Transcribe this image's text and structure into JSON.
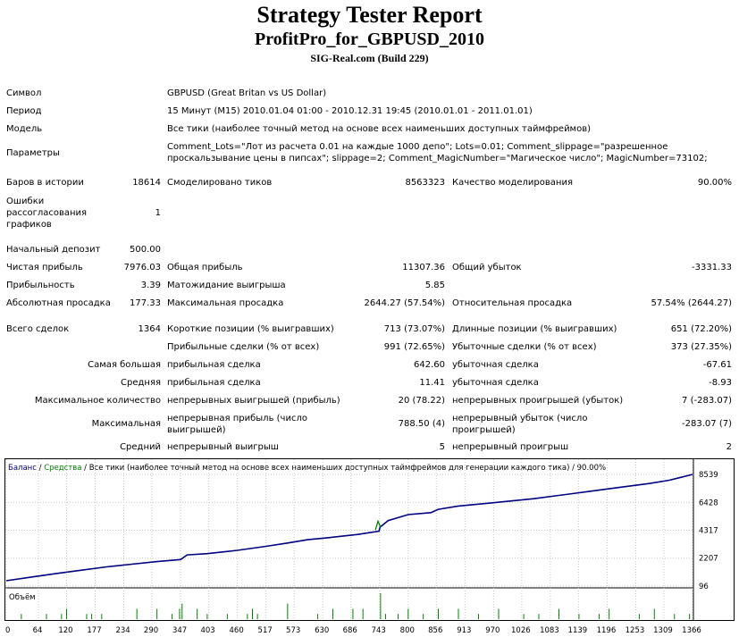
{
  "header": {
    "title": "Strategy Tester Report",
    "subtitle": "ProfitPro_for_GBPUSD_2010",
    "build": "SIG-Real.com (Build 229)"
  },
  "info": {
    "symbol_label": "Символ",
    "symbol_value": "GBPUSD (Great Britan vs US Dollar)",
    "period_label": "Период",
    "period_value": "15 Минут (M15) 2010.01.04 01:00 - 2010.12.31 19:45 (2010.01.01 - 2011.01.01)",
    "model_label": "Модель",
    "model_value": "Все тики (наиболее точный метод на основе всех наименьших доступных таймфреймов)",
    "params_label": "Параметры",
    "params_value": "Comment_Lots=\"Лот из расчета 0.01 на каждые 1000 депо\"; Lots=0.01; Comment_slippage=\"разрешенное проскальзывание цены в пипсах\"; slippage=2; Comment_MagicNumber=\"Магическое число\"; MagicNumber=73102;"
  },
  "stats": {
    "bars_label": "Баров в истории",
    "bars_value": "18614",
    "ticks_label": "Смоделировано тиков",
    "ticks_value": "8563323",
    "quality_label": "Качество моделирования",
    "quality_value": "90.00%",
    "errors_label": "Ошибки рассогласования графиков",
    "errors_value": "1",
    "deposit_label": "Начальный депозит",
    "deposit_value": "500.00",
    "net_label": "Чистая прибыль",
    "net_value": "7976.03",
    "gross_profit_label": "Общая прибыль",
    "gross_profit_value": "11307.36",
    "gross_loss_label": "Общий убыток",
    "gross_loss_value": "-3331.33",
    "pf_label": "Прибыльность",
    "pf_value": "3.39",
    "payoff_label": "Матожидание выигрыша",
    "payoff_value": "5.85",
    "abs_dd_label": "Абсолютная просадка",
    "abs_dd_value": "177.33",
    "max_dd_label": "Максимальная просадка",
    "max_dd_value": "2644.27 (57.54%)",
    "rel_dd_label": "Относительная просадка",
    "rel_dd_value": "57.54% (2644.27)",
    "trades_label": "Всего сделок",
    "trades_value": "1364",
    "short_label": "Короткие позиции (% выигравших)",
    "short_value": "713 (73.07%)",
    "long_label": "Длинные позиции (% выигравших)",
    "long_value": "651 (72.20%)",
    "profit_trades_label": "Прибыльные сделки (% от всех)",
    "profit_trades_value": "991 (72.65%)",
    "loss_trades_label": "Убыточные сделки (% от всех)",
    "loss_trades_value": "373 (27.35%)",
    "largest_label": "Самая большая",
    "largest_profit_label": "прибыльная сделка",
    "largest_profit_value": "642.60",
    "largest_loss_label": "убыточная сделка",
    "largest_loss_value": "-67.61",
    "avg_label": "Средняя",
    "avg_profit_label": "прибыльная сделка",
    "avg_profit_value": "11.41",
    "avg_loss_label": "убыточная сделка",
    "avg_loss_value": "-8.93",
    "maxcount_label": "Максимальное количество",
    "cons_wins_label": "непрерывных выигрышей (прибыль)",
    "cons_wins_value": "20 (78.22)",
    "cons_losses_label": "непрерывных проигрышей (убыток)",
    "cons_losses_value": "7 (-283.07)",
    "maximal_label": "Максимальная",
    "cons_profit_label": "непрерывная прибыль (число выигрышей)",
    "cons_profit_value": "788.50 (4)",
    "cons_loss_label": "непрерывный убыток (число проигрышей)",
    "cons_loss_value": "-283.07 (7)",
    "avgcons_label": "Средний",
    "avg_cons_win_label": "непрерывный выигрыш",
    "avg_cons_win_value": "5",
    "avg_cons_loss_label": "непрерывный проигрыш",
    "avg_cons_loss_value": "2"
  },
  "chart_data": {
    "type": "line",
    "legend_balance": "Баланс",
    "legend_sep1": " / ",
    "legend_equity": "Средства",
    "legend_rest": " / Все тики (наиболее точный метод на основе всех наименьших доступных таймфреймов для генерации каждого тика) / 90.00%",
    "volume_label": "Объём",
    "y_ticks": [
      "8539",
      "6428",
      "4317",
      "2207",
      "96"
    ],
    "y_tick_values": [
      8539,
      6428,
      4317,
      2207,
      96
    ],
    "x_ticks": [
      "0",
      "64",
      "120",
      "177",
      "234",
      "290",
      "347",
      "403",
      "460",
      "517",
      "573",
      "630",
      "686",
      "743",
      "800",
      "856",
      "913",
      "970",
      "1026",
      "1083",
      "1139",
      "1196",
      "1253",
      "1309",
      "1366"
    ],
    "x_tick_values": [
      0,
      64,
      120,
      177,
      234,
      290,
      347,
      403,
      460,
      517,
      573,
      630,
      686,
      743,
      800,
      856,
      913,
      970,
      1026,
      1083,
      1139,
      1196,
      1253,
      1309,
      1366
    ],
    "xlim": [
      0,
      1366
    ],
    "ylim": [
      96,
      8539
    ],
    "balance_color": "#000080",
    "equity_color": "#008000",
    "volume_color": "#008000",
    "balance": {
      "x": [
        0,
        50,
        100,
        150,
        200,
        250,
        300,
        347,
        360,
        400,
        460,
        517,
        560,
        600,
        640,
        700,
        742,
        744,
        760,
        800,
        845,
        860,
        900,
        970,
        1050,
        1100,
        1160,
        1220,
        1280,
        1320,
        1366
      ],
      "y": [
        500,
        780,
        1050,
        1300,
        1550,
        1750,
        1950,
        2100,
        2450,
        2550,
        2800,
        3100,
        3350,
        3600,
        3750,
        4000,
        4250,
        4550,
        5050,
        5500,
        5650,
        5900,
        6150,
        6400,
        6700,
        6950,
        7250,
        7550,
        7850,
        8100,
        8539
      ]
    },
    "equity": {
      "x": [
        735,
        740,
        745
      ],
      "y": [
        4350,
        5000,
        4550
      ]
    },
    "volume": {
      "x": [
        30,
        80,
        110,
        120,
        160,
        170,
        190,
        260,
        300,
        330,
        345,
        350,
        380,
        400,
        440,
        480,
        490,
        500,
        560,
        620,
        650,
        690,
        710,
        745,
        755,
        780,
        800,
        830,
        860,
        900,
        940,
        980,
        1030,
        1060,
        1100,
        1140,
        1180,
        1200,
        1260,
        1290,
        1330,
        1360
      ],
      "y": [
        1,
        1,
        1,
        2,
        1,
        1,
        1,
        2,
        2,
        1,
        2,
        3,
        2,
        1,
        1,
        1,
        2,
        1,
        3,
        1,
        2,
        2,
        2,
        5,
        1,
        1,
        2,
        1,
        2,
        2,
        1,
        2,
        1,
        1,
        2,
        1,
        1,
        2,
        1,
        2,
        1,
        1
      ]
    }
  }
}
